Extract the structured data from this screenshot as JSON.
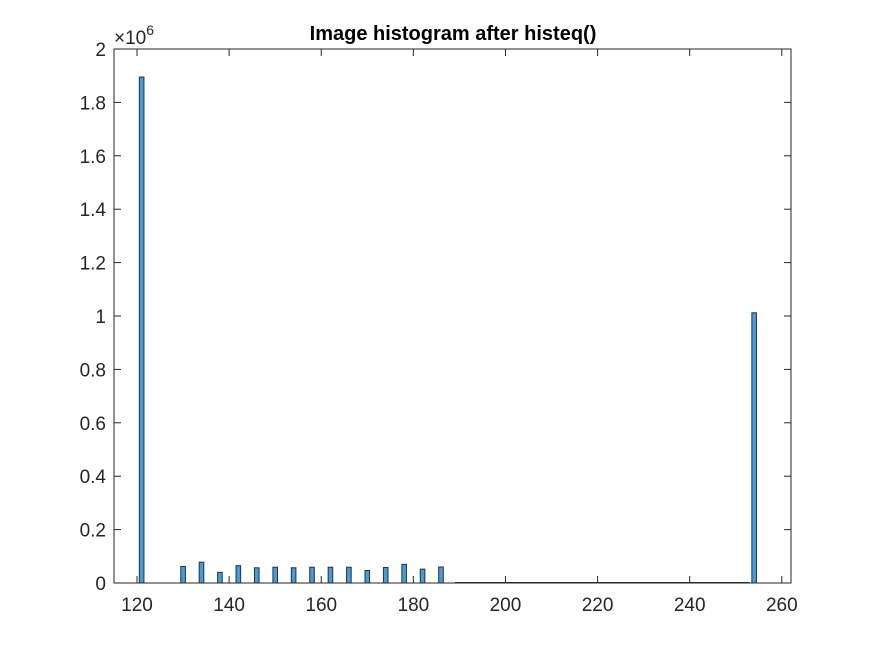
{
  "chart_data": {
    "type": "bar",
    "title": "Image histogram after histeq()",
    "xlabel": "",
    "ylabel": "",
    "xlim": [
      115,
      262
    ],
    "ylim": [
      0,
      2000000
    ],
    "x_ticks": [
      "120",
      "140",
      "160",
      "180",
      "200",
      "220",
      "240",
      "260"
    ],
    "y_ticks": [
      "0",
      "0.2",
      "0.4",
      "0.6",
      "0.8",
      "1",
      "1.2",
      "1.4",
      "1.6",
      "1.8",
      "2"
    ],
    "y_exponent_base": "×10",
    "y_exponent_power": "6",
    "bar_width": 1,
    "bar_color": "#4a9ad4",
    "edge_color": "#1f3347",
    "grid": false,
    "x": [
      121,
      130,
      134,
      138,
      142,
      146,
      150,
      154,
      158,
      162,
      166,
      170,
      174,
      178,
      182,
      186,
      254
    ],
    "values": [
      1895000,
      62000,
      78000,
      40000,
      65000,
      57000,
      59000,
      57000,
      59000,
      59000,
      59000,
      47000,
      58000,
      70000,
      52000,
      60000,
      1012000
    ]
  }
}
